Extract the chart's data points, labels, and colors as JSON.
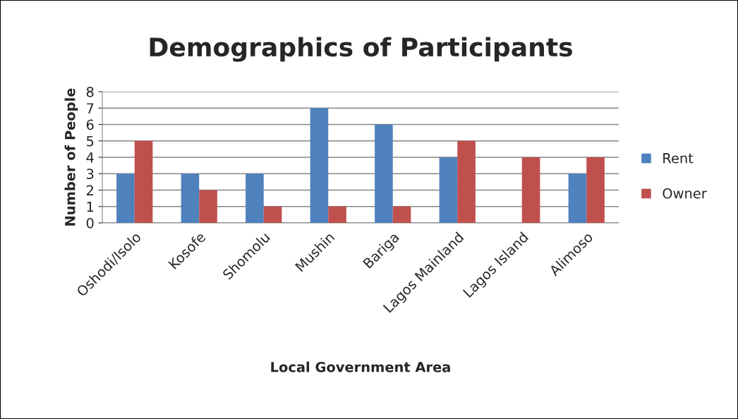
{
  "chart_data": {
    "type": "bar",
    "title": "Demographics of Participants",
    "xlabel": "Local Government Area",
    "ylabel": "Number of People",
    "categories": [
      "Oshodi/Isolo",
      "Kosofe",
      "Shomolu",
      "Mushin",
      "Bariga",
      "Lagos Mainland",
      "Lagos Island",
      "Alimoso"
    ],
    "series": [
      {
        "name": "Rent",
        "color": "#4f81bd",
        "values": [
          3,
          3,
          3,
          7,
          6,
          4,
          null,
          3
        ]
      },
      {
        "name": "Owner",
        "color": "#c0504d",
        "values": [
          5,
          2,
          1,
          1,
          1,
          5,
          4,
          4
        ]
      }
    ],
    "ylim": [
      0,
      8
    ],
    "yticks": [
      0,
      1,
      2,
      3,
      4,
      5,
      6,
      7,
      8
    ],
    "grid": "y",
    "legend": "right"
  }
}
